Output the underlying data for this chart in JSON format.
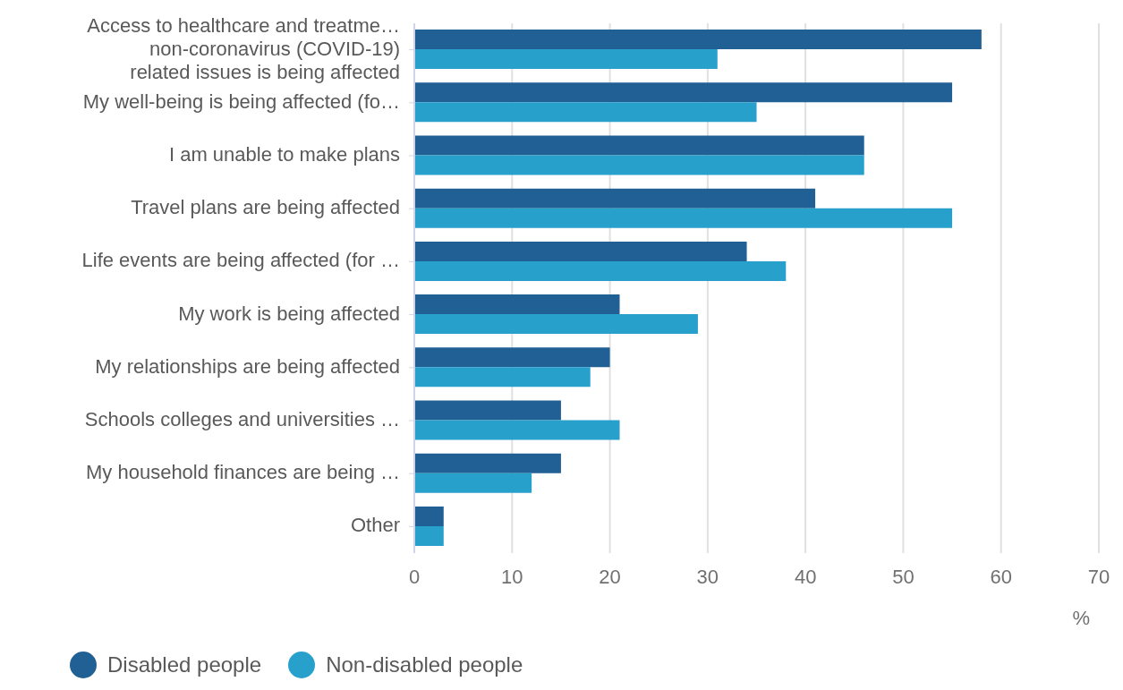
{
  "chart_data": {
    "type": "bar",
    "orientation": "horizontal",
    "xlabel": "%",
    "categories": [
      "Access to healthcare and treatme…\nnon-coronavirus (COVID-19)\nrelated issues is being affected",
      "My well-being is being affected (fo…",
      "I am unable to make plans",
      "Travel plans are being affected",
      "Life events are being affected (for …",
      "My work is being affected",
      "My relationships are being affected",
      "Schools colleges and universities …",
      "My household finances are being …",
      "Other"
    ],
    "series": [
      {
        "name": "Disabled people",
        "color": "#206095",
        "values": [
          58,
          55,
          46,
          41,
          34,
          21,
          20,
          15,
          15,
          3
        ]
      },
      {
        "name": "Non-disabled people",
        "color": "#27a0cc",
        "values": [
          31,
          35,
          46,
          55,
          38,
          29,
          18,
          21,
          12,
          3
        ]
      }
    ],
    "xlim": [
      0,
      70
    ],
    "xticks": [
      0,
      10,
      20,
      30,
      40,
      50,
      60,
      70
    ],
    "grid": "x",
    "legend": "bottom"
  }
}
